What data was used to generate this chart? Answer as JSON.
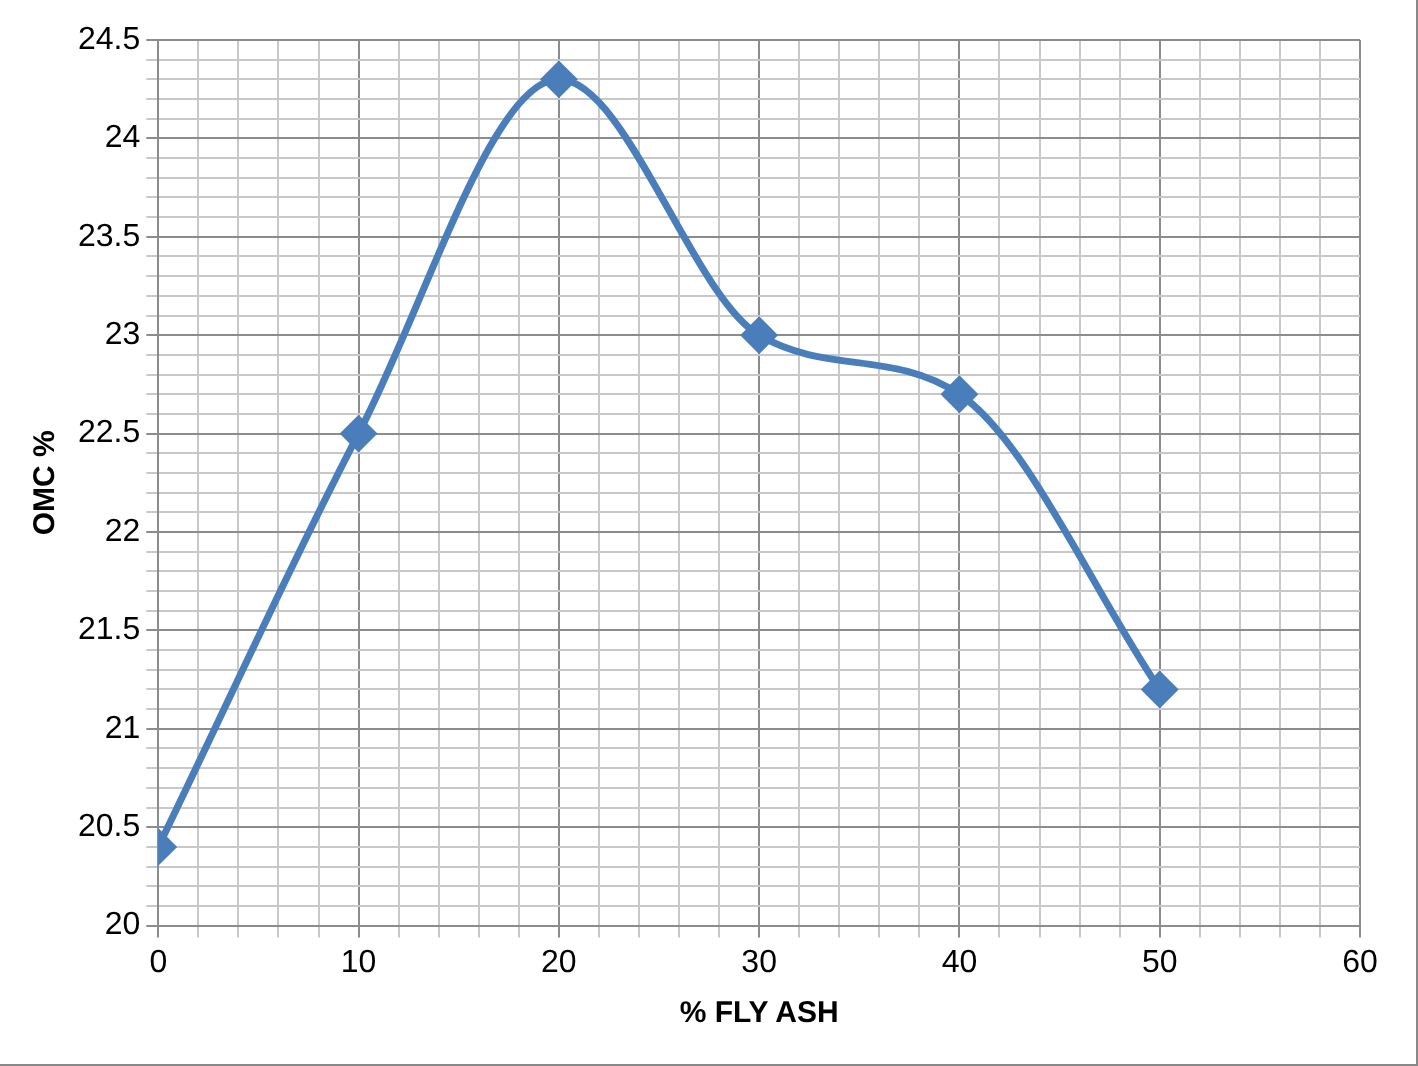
{
  "chart_data": {
    "type": "line",
    "xlabel": "% FLY ASH",
    "ylabel": "OMC %",
    "x": [
      0,
      10,
      20,
      30,
      40,
      50
    ],
    "series": [
      {
        "color": "#4a7ebb",
        "values": [
          20.4,
          22.5,
          24.3,
          23.0,
          22.7,
          21.2
        ]
      }
    ],
    "xlim": [
      0,
      60
    ],
    "xticks": [
      0,
      {
        "value": 2,
        "label": null
      },
      {
        "value": 4,
        "label": null
      },
      {
        "value": 6,
        "label": null
      },
      {
        "value": 8,
        "label": null
      },
      10,
      {
        "value": 12,
        "label": null
      },
      {
        "value": 14,
        "label": null
      },
      {
        "value": 16,
        "label": null
      },
      {
        "value": 18,
        "label": null
      },
      20,
      {
        "value": 22,
        "label": null
      },
      {
        "value": 24,
        "label": null
      },
      {
        "value": 26,
        "label": null
      },
      {
        "value": 28,
        "label": null
      },
      30,
      {
        "value": 32,
        "label": null
      },
      {
        "value": 34,
        "label": null
      },
      {
        "value": 36,
        "label": null
      },
      {
        "value": 38,
        "label": null
      },
      40,
      {
        "value": 42,
        "label": null
      },
      {
        "value": 44,
        "label": null
      },
      {
        "value": 46,
        "label": null
      },
      {
        "value": 48,
        "label": null
      },
      50,
      {
        "value": 52,
        "label": null
      },
      {
        "value": 54,
        "label": null
      },
      {
        "value": 56,
        "label": null
      },
      {
        "value": 58,
        "label": null
      },
      60
    ],
    "ylim": [
      20,
      24.5
    ],
    "yticks": [
      20,
      {
        "value": 20.1,
        "label": null
      },
      {
        "value": 20.2,
        "label": null
      },
      {
        "value": 20.3,
        "label": null
      },
      {
        "value": 20.4,
        "label": null
      },
      20.5,
      {
        "value": 20.6,
        "label": null
      },
      {
        "value": 20.7,
        "label": null
      },
      {
        "value": 20.8,
        "label": null
      },
      {
        "value": 20.9,
        "label": null
      },
      21,
      {
        "value": 21.1,
        "label": null
      },
      {
        "value": 21.2,
        "label": null
      },
      {
        "value": 21.3,
        "label": null
      },
      {
        "value": 21.4,
        "label": null
      },
      21.5,
      {
        "value": 21.6,
        "label": null
      },
      {
        "value": 21.7,
        "label": null
      },
      {
        "value": 21.8,
        "label": null
      },
      {
        "value": 21.9,
        "label": null
      },
      22,
      {
        "value": 22.1,
        "label": null
      },
      {
        "value": 22.2,
        "label": null
      },
      {
        "value": 22.3,
        "label": null
      },
      {
        "value": 22.4,
        "label": null
      },
      22.5,
      {
        "value": 22.6,
        "label": null
      },
      {
        "value": 22.7,
        "label": null
      },
      {
        "value": 22.8,
        "label": null
      },
      {
        "value": 22.9,
        "label": null
      },
      23,
      {
        "value": 23.1,
        "label": null
      },
      {
        "value": 23.2,
        "label": null
      },
      {
        "value": 23.3,
        "label": null
      },
      {
        "value": 23.4,
        "label": null
      },
      23.5,
      {
        "value": 23.6,
        "label": null
      },
      {
        "value": 23.7,
        "label": null
      },
      {
        "value": 23.8,
        "label": null
      },
      {
        "value": 23.9,
        "label": null
      },
      24,
      {
        "value": 24.1,
        "label": null
      },
      {
        "value": 24.2,
        "label": null
      },
      {
        "value": 24.3,
        "label": null
      },
      {
        "value": 24.4,
        "label": null
      },
      24.5
    ],
    "grid": true,
    "legend": false,
    "marker": "diamond",
    "line_style": "solid"
  }
}
